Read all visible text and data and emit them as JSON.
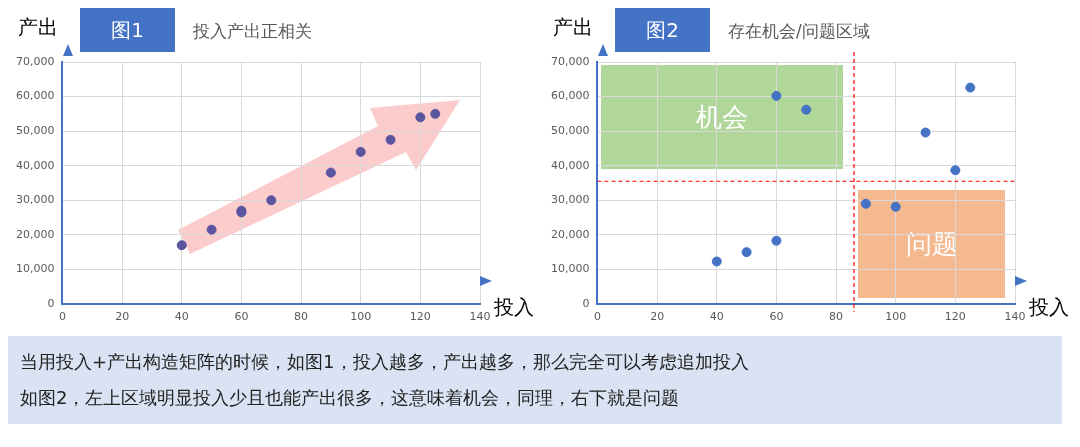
{
  "chart_data": [
    {
      "type": "scatter",
      "title": "图1",
      "subtitle": "投入产出正相关",
      "xlabel": "投入",
      "ylabel": "产出",
      "xlim": [
        0,
        140
      ],
      "xticks": [
        0,
        20,
        40,
        60,
        80,
        100,
        120,
        140
      ],
      "ylim": [
        0,
        70000
      ],
      "yticks": [
        {
          "value": 0,
          "label": "0"
        },
        {
          "value": 10000,
          "label": "10,000"
        },
        {
          "value": 20000,
          "label": "20,000"
        },
        {
          "value": 30000,
          "label": "30,000"
        },
        {
          "value": 40000,
          "label": "40,000"
        },
        {
          "value": 50000,
          "label": "50,000"
        },
        {
          "value": 60000,
          "label": "60,000"
        },
        {
          "value": 70000,
          "label": "70,000"
        }
      ],
      "grid": true,
      "marker": "circle",
      "series": [
        {
          "color": "#5b55a0",
          "x": [
            40,
            50,
            60,
            60,
            70,
            90,
            100,
            110,
            120,
            125
          ],
          "values": [
            17000,
            21500,
            26500,
            27000,
            30000,
            38000,
            44000,
            47500,
            54000,
            55000
          ]
        }
      ]
    },
    {
      "type": "scatter",
      "title": "图2",
      "subtitle": "存在机会/问题区域",
      "xlabel": "投入",
      "ylabel": "产出",
      "xlim": [
        0,
        140
      ],
      "xticks": [
        0,
        20,
        40,
        60,
        80,
        100,
        120,
        140
      ],
      "ylim": [
        0,
        70000
      ],
      "yticks": [
        {
          "value": 0,
          "label": "0"
        },
        {
          "value": 10000,
          "label": "10,000"
        },
        {
          "value": 20000,
          "label": "20,000"
        },
        {
          "value": 30000,
          "label": "30,000"
        },
        {
          "value": 40000,
          "label": "40,000"
        },
        {
          "value": 50000,
          "label": "50,000"
        },
        {
          "value": 60000,
          "label": "60,000"
        },
        {
          "value": 70000,
          "label": "70,000"
        }
      ],
      "grid": true,
      "marker": "circle",
      "series": [
        {
          "color": "#4472c4",
          "x": [
            40,
            50,
            60,
            60,
            70,
            90,
            100,
            110,
            120,
            125
          ],
          "values": [
            12300,
            15000,
            18300,
            60200,
            56200,
            29000,
            28100,
            49600,
            38700,
            62600
          ]
        }
      ],
      "ref_lines": [
        {
          "axis": "x",
          "value": 86,
          "color": "#ff0000",
          "line_style": "dashed"
        },
        {
          "axis": "y",
          "value": 35500,
          "color": "#ff0000",
          "line_style": "dashed"
        }
      ],
      "annotations": [
        "机会",
        "问题"
      ]
    },
    {
      "type": "other",
      "annotations": [
        "当用投入+产出构造矩阵的时候，如图1，投入越多，产出越多，那么完全可以考虑追加投入",
        "如图2，左上区域明显投入少且也能产出很多，这意味着机会，同理，右下就是问题"
      ]
    }
  ]
}
